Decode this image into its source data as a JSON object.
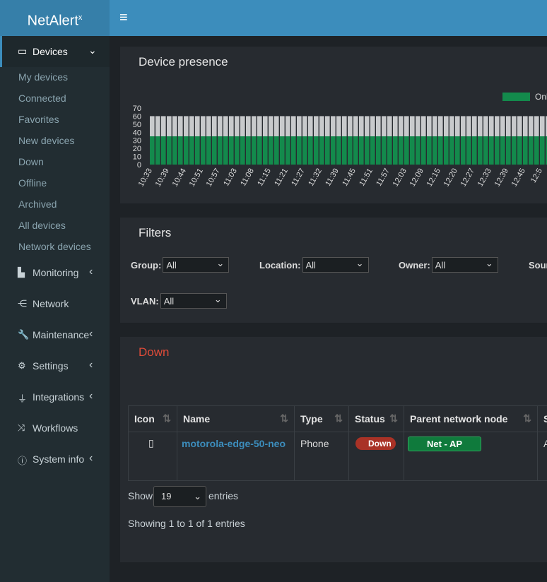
{
  "header": {
    "logo": "NetAlert",
    "logo_sup": "x"
  },
  "sidebar": {
    "active": "Devices",
    "submenu": [
      "My devices",
      "Connected",
      "Favorites",
      "New devices",
      "Down",
      "Offline",
      "Archived",
      "All devices",
      "Network devices"
    ],
    "items": [
      "Monitoring",
      "Network",
      "Maintenance",
      "Settings",
      "Integrations",
      "Workflows",
      "System info"
    ]
  },
  "presence": {
    "title": "Device presence"
  },
  "chart_data": {
    "type": "bar",
    "stacked": true,
    "categories": [
      "10:33",
      null,
      null,
      "10:39",
      null,
      null,
      "10:44",
      null,
      null,
      "10:51",
      null,
      null,
      "10:57",
      null,
      null,
      "11:03",
      null,
      null,
      "11:08",
      null,
      null,
      "11:15",
      null,
      null,
      "11:21",
      null,
      null,
      "11:27",
      null,
      null,
      "11:32",
      null,
      null,
      "11:39",
      null,
      null,
      "11:45",
      null,
      null,
      "11:51",
      null,
      null,
      "11:57",
      null,
      null,
      "12:03",
      null,
      null,
      "12:09",
      null,
      null,
      "12:15",
      null,
      null,
      "12:20",
      null,
      null,
      "12:27",
      null,
      null,
      "12:33",
      null,
      null,
      "12:39",
      null,
      null,
      "12:45",
      null,
      null,
      "12:5",
      null,
      null
    ],
    "series": [
      {
        "name": "Onl",
        "color": "#138a4c",
        "values": [
          35,
          35,
          35,
          35,
          35,
          35,
          35,
          35,
          35,
          35,
          35,
          35,
          35,
          35,
          35,
          35,
          35,
          35,
          35,
          35,
          35,
          35,
          35,
          35,
          35,
          35,
          35,
          35,
          35,
          35,
          35,
          35,
          35,
          35,
          35,
          35,
          35,
          35,
          35,
          35,
          35,
          35,
          35,
          35,
          35,
          35,
          35,
          35,
          35,
          35,
          35,
          35,
          35,
          35,
          35,
          35,
          35,
          35,
          35,
          35,
          35,
          35,
          35,
          35,
          35,
          35,
          35,
          35,
          35,
          35,
          35,
          35
        ]
      },
      {
        "color": "#c8cacc",
        "values": [
          25,
          25,
          25,
          25,
          25,
          25,
          25,
          25,
          25,
          25,
          25,
          25,
          25,
          25,
          25,
          25,
          25,
          25,
          25,
          25,
          25,
          25,
          25,
          25,
          25,
          25,
          25,
          25,
          25,
          25,
          25,
          25,
          25,
          25,
          25,
          25,
          25,
          25,
          25,
          25,
          25,
          25,
          25,
          25,
          25,
          25,
          25,
          25,
          25,
          25,
          25,
          25,
          25,
          25,
          25,
          25,
          25,
          25,
          25,
          25,
          25,
          25,
          25,
          25,
          25,
          25,
          25,
          25,
          25,
          25,
          25,
          25
        ]
      }
    ],
    "ylim": [
      0,
      70
    ],
    "yticks": [
      0,
      10,
      20,
      30,
      40,
      50,
      60,
      70
    ]
  },
  "filters": {
    "title": "Filters",
    "fields": [
      {
        "label": "Group:",
        "value": "All"
      },
      {
        "label": "Location:",
        "value": "All"
      },
      {
        "label": "Owner:",
        "value": "All"
      },
      {
        "label": "Sour"
      },
      {
        "label": "VLAN:",
        "value": "All"
      }
    ]
  },
  "down": {
    "title": "Down",
    "columns": [
      "Icon",
      "Name",
      "Type",
      "Status",
      "Parent network node",
      "S"
    ],
    "rows": [
      [
        "motorola-edge-50-neo",
        "Phone",
        "Down",
        "Net - AP",
        "Al"
      ]
    ],
    "show": "Show",
    "page_size": "19",
    "entries": "entries",
    "info": "Showing 1 to 1 of 1 entries"
  }
}
